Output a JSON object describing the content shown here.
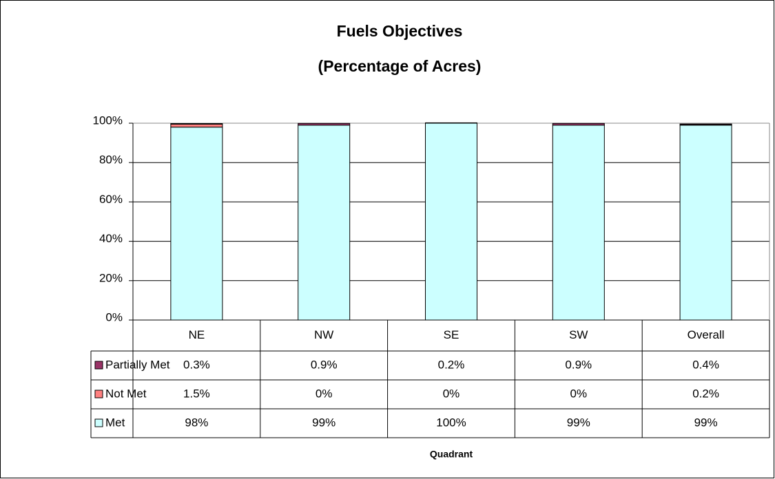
{
  "chart_data": {
    "type": "stacked_bar",
    "title": "Fuels Objectives",
    "subtitle": "(Percentage of Acres)",
    "x_label": "Quadrant",
    "categories": [
      "NE",
      "NW",
      "SE",
      "SW",
      "Overall"
    ],
    "series": [
      {
        "name": "Met",
        "color": "#ccffff",
        "values": [
          98,
          99,
          100,
          99,
          99
        ],
        "value_labels": [
          "98%",
          "99%",
          "100%",
          "99%",
          "99%"
        ]
      },
      {
        "name": "Not Met",
        "color": "#ff8080",
        "values": [
          1.5,
          0,
          0,
          0,
          0.2
        ],
        "value_labels": [
          "1.5%",
          "0%",
          "0%",
          "0%",
          "0.2%"
        ]
      },
      {
        "name": "Partially Met",
        "color": "#993366",
        "values": [
          0.3,
          0.9,
          0.2,
          0.9,
          0.4
        ],
        "value_labels": [
          "0.3%",
          "0.9%",
          "0.2%",
          "0.9%",
          "0.4%"
        ]
      }
    ],
    "ylim": [
      0,
      100
    ],
    "yticks": [
      {
        "value": 0,
        "label": "0%"
      },
      {
        "value": 20,
        "label": "20%"
      },
      {
        "value": 40,
        "label": "40%"
      },
      {
        "value": 60,
        "label": "60%"
      },
      {
        "value": 80,
        "label": "80%"
      },
      {
        "value": 100,
        "label": "100%"
      }
    ],
    "grid": true,
    "legend": "data-table"
  }
}
